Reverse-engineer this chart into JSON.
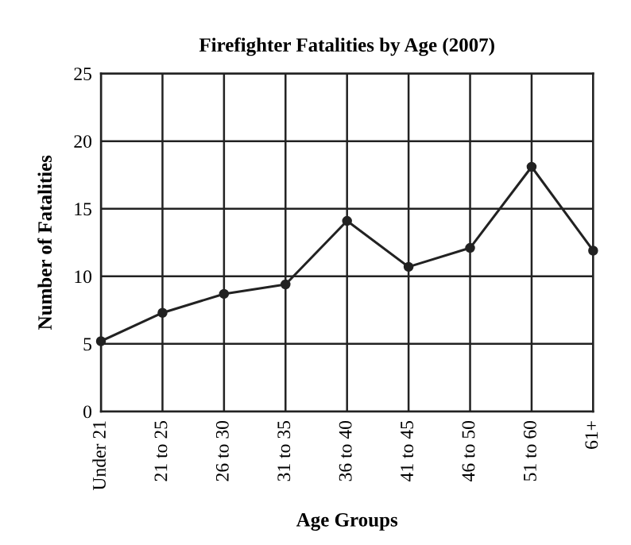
{
  "chart_data": {
    "type": "line",
    "title": "Firefighter Fatalities by Age (2007)",
    "xlabel": "Age Groups",
    "ylabel": "Number of Fatalities",
    "categories": [
      "Under 21",
      "21 to 25",
      "26 to 30",
      "31 to 35",
      "36 to 40",
      "41 to 45",
      "46 to 50",
      "51 to 60",
      "61+"
    ],
    "series": [
      {
        "color": "#222222",
        "values": [
          5.2,
          7.3,
          8.7,
          9.4,
          14.1,
          10.7,
          12.1,
          18.1,
          11.9
        ]
      }
    ],
    "ylim": [
      0,
      25
    ],
    "yticks": [
      0,
      5,
      10,
      15,
      20,
      25
    ],
    "grid": true,
    "marker": "circle",
    "line_style": "solid"
  }
}
